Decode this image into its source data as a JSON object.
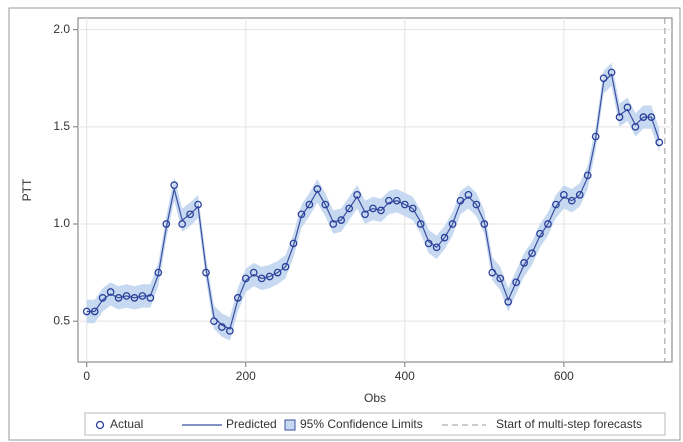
{
  "chart_data": {
    "type": "line",
    "xlabel": "Obs",
    "ylabel": "PTT",
    "x": [
      0,
      10,
      20,
      30,
      40,
      50,
      60,
      70,
      80,
      90,
      100,
      110,
      120,
      130,
      140,
      150,
      160,
      170,
      180,
      190,
      200,
      210,
      220,
      230,
      240,
      250,
      260,
      270,
      280,
      290,
      300,
      310,
      320,
      330,
      340,
      350,
      360,
      370,
      380,
      390,
      400,
      410,
      420,
      430,
      440,
      450,
      460,
      470,
      480,
      490,
      500,
      510,
      520,
      530,
      540,
      550,
      560,
      570,
      580,
      590,
      600,
      610,
      620,
      630,
      640,
      650,
      660,
      670,
      680,
      690,
      700,
      710,
      720
    ],
    "series": [
      {
        "name": "Actual",
        "color": "#2a3f9a",
        "marker": "circle",
        "values": [
          0.55,
          0.55,
          0.62,
          0.65,
          0.62,
          0.63,
          0.62,
          0.63,
          0.62,
          0.75,
          1.0,
          1.2,
          1.0,
          1.05,
          1.1,
          0.75,
          0.5,
          0.47,
          0.45,
          0.62,
          0.72,
          0.75,
          0.72,
          0.73,
          0.75,
          0.78,
          0.9,
          1.05,
          1.1,
          1.18,
          1.1,
          1.0,
          1.02,
          1.08,
          1.15,
          1.05,
          1.08,
          1.07,
          1.12,
          1.12,
          1.1,
          1.08,
          1.0,
          0.9,
          0.88,
          0.93,
          1.0,
          1.12,
          1.15,
          1.1,
          1.0,
          0.75,
          0.72,
          0.6,
          0.7,
          0.8,
          0.85,
          0.95,
          1.0,
          1.1,
          1.15,
          1.12,
          1.15,
          1.25,
          1.45,
          1.75,
          1.78,
          1.55,
          1.6,
          1.5,
          1.55,
          1.55,
          1.42
        ]
      },
      {
        "name": "Predicted",
        "color": "#3b4fa0",
        "marker": "line",
        "values": [
          0.55,
          0.55,
          0.61,
          0.64,
          0.62,
          0.63,
          0.62,
          0.63,
          0.63,
          0.74,
          0.98,
          1.18,
          1.02,
          1.05,
          1.09,
          0.77,
          0.52,
          0.48,
          0.46,
          0.61,
          0.71,
          0.74,
          0.72,
          0.73,
          0.75,
          0.78,
          0.89,
          1.04,
          1.1,
          1.17,
          1.1,
          1.01,
          1.02,
          1.08,
          1.14,
          1.06,
          1.08,
          1.07,
          1.11,
          1.12,
          1.1,
          1.08,
          1.01,
          0.91,
          0.88,
          0.93,
          1.0,
          1.11,
          1.14,
          1.1,
          1.01,
          0.77,
          0.72,
          0.61,
          0.7,
          0.79,
          0.85,
          0.94,
          1.0,
          1.09,
          1.14,
          1.12,
          1.15,
          1.24,
          1.44,
          1.73,
          1.77,
          1.56,
          1.59,
          1.51,
          1.55,
          1.55,
          1.43
        ]
      }
    ],
    "confidence_band": {
      "name": "95% Confidence Limits",
      "color": "#c6d9f0",
      "lower": [
        0.49,
        0.49,
        0.55,
        0.58,
        0.56,
        0.57,
        0.56,
        0.57,
        0.57,
        0.68,
        0.92,
        1.12,
        0.96,
        0.99,
        1.03,
        0.71,
        0.46,
        0.42,
        0.4,
        0.55,
        0.65,
        0.68,
        0.66,
        0.67,
        0.69,
        0.72,
        0.83,
        0.98,
        1.04,
        1.11,
        1.04,
        0.95,
        0.96,
        1.02,
        1.08,
        1.0,
        1.02,
        1.01,
        1.05,
        1.06,
        1.04,
        1.02,
        0.95,
        0.85,
        0.82,
        0.87,
        0.94,
        1.05,
        1.08,
        1.04,
        0.95,
        0.71,
        0.66,
        0.55,
        0.64,
        0.73,
        0.79,
        0.88,
        0.94,
        1.03,
        1.08,
        1.06,
        1.09,
        1.18,
        1.38,
        1.67,
        1.71,
        1.5,
        1.53,
        1.45,
        1.49,
        1.49,
        1.37
      ],
      "upper": [
        0.61,
        0.61,
        0.67,
        0.7,
        0.68,
        0.69,
        0.68,
        0.69,
        0.69,
        0.8,
        1.04,
        1.24,
        1.08,
        1.11,
        1.15,
        0.83,
        0.58,
        0.54,
        0.52,
        0.67,
        0.77,
        0.8,
        0.78,
        0.79,
        0.81,
        0.84,
        0.95,
        1.1,
        1.16,
        1.23,
        1.16,
        1.07,
        1.08,
        1.14,
        1.2,
        1.12,
        1.14,
        1.13,
        1.17,
        1.18,
        1.16,
        1.14,
        1.07,
        0.97,
        0.94,
        0.99,
        1.06,
        1.17,
        1.2,
        1.16,
        1.07,
        0.83,
        0.78,
        0.67,
        0.76,
        0.85,
        0.91,
        1.0,
        1.06,
        1.15,
        1.2,
        1.18,
        1.21,
        1.3,
        1.5,
        1.79,
        1.83,
        1.62,
        1.65,
        1.57,
        1.61,
        1.61,
        1.49
      ]
    },
    "forecast_start": {
      "value": 727,
      "label": "Start of multi-step forecasts"
    },
    "xlim": [
      -11,
      736
    ],
    "ylim": [
      0.29,
      2.06
    ],
    "xticks": [
      0,
      200,
      400,
      600
    ],
    "yticks": [
      0.5,
      {
        "value": 1.0,
        "label": "1.0"
      },
      1.5,
      {
        "value": 2.0,
        "label": "2.0"
      }
    ],
    "grid": true
  }
}
